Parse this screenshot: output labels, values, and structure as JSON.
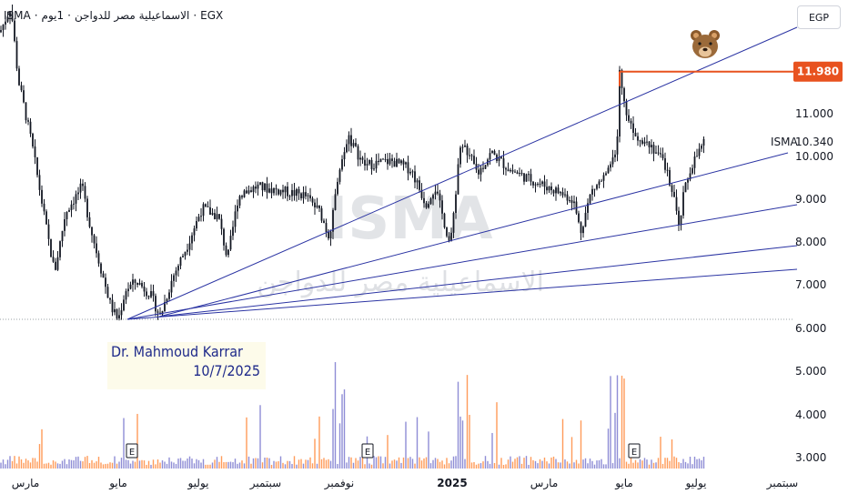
{
  "header": {
    "symbol": "ISMA",
    "separator": "·",
    "name": "الاسماعيلية مصر للدواجن",
    "timeframe": "1يوم",
    "exchange": "EGX"
  },
  "currency_label": "EGP",
  "watermark": {
    "ticker": "ISMA",
    "company": "الاسماعيلية مصر للدواجن"
  },
  "signature": {
    "line1": "Dr. Mahmoud Karrar",
    "line2": "10/7/2025"
  },
  "bear_icon": "bear-face-icon",
  "colors": {
    "up": "#7b79cf",
    "down": "#ff8a3d",
    "price": "#131722",
    "trendline": "#2b34a3",
    "resistance": "#e8521f",
    "label_bg": "#e8521f"
  },
  "chart_data": {
    "type": "candlestick",
    "symbol": "ISMA",
    "last_price": 10.34,
    "resistance_level": 11.98,
    "y_ticks": [
      "11.000",
      "10.000",
      "9.000",
      "8.000",
      "7.000",
      "6.000",
      "5.000",
      "4.000",
      "3.000"
    ],
    "x_ticks": [
      "مارس",
      "مايو",
      "يوليو",
      "سبتمبر",
      "نوفمبر",
      "2025",
      "مارس",
      "مايو",
      "يوليو",
      "سبتمبر"
    ],
    "price_labels": {
      "resistance": "11.980",
      "last": "10.340",
      "last_symbol": "ISMA"
    },
    "earnings_markers": [
      "E",
      "E",
      "E"
    ],
    "key_prices": {
      "start_high": 13.5,
      "major_low_1": 6.2,
      "major_low_2": 6.28,
      "high_2024": 10.5,
      "low_jan_2025": 7.8,
      "low_apr_2025": 7.95,
      "peak_may_2025": 11.98,
      "low_jun_2025": 8.1,
      "current": 10.34
    }
  }
}
